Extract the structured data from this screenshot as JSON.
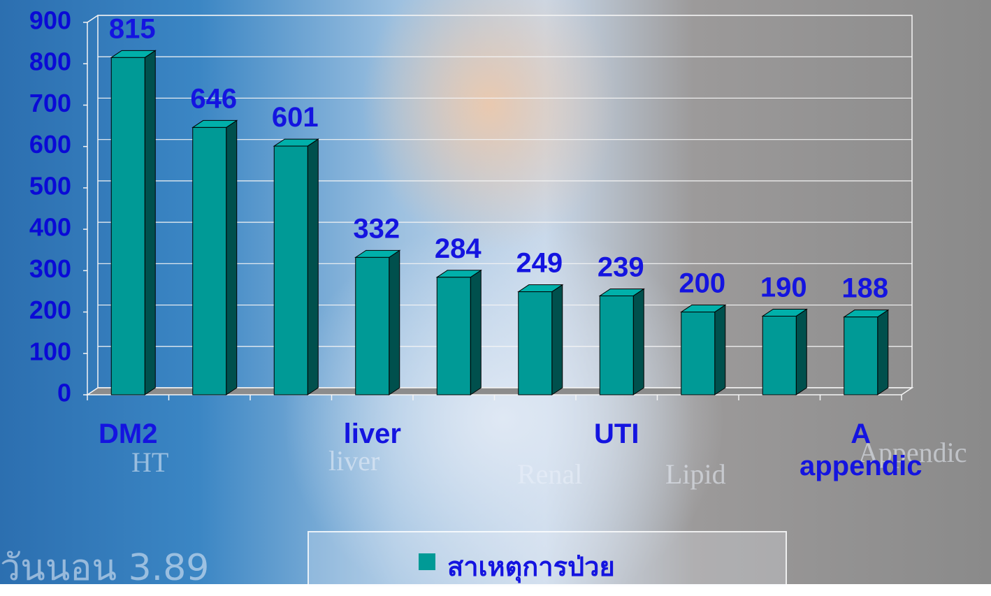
{
  "chart_data": {
    "type": "bar",
    "categories": [
      "DM2",
      null,
      null,
      "liver",
      null,
      null,
      "UTI",
      null,
      null,
      "A appendic"
    ],
    "series": [
      {
        "name": "สาเหตุการป่วย",
        "color": "#009a96",
        "values": [
          815,
          646,
          601,
          332,
          284,
          249,
          239,
          200,
          190,
          188
        ]
      }
    ],
    "ylim": [
      0,
      900
    ],
    "yticks": [
      0,
      100,
      200,
      300,
      400,
      500,
      600,
      700,
      800,
      900
    ],
    "grid": true,
    "legend": "bottom"
  },
  "background_texts": [
    "HT",
    "liver",
    "Renal",
    "Lipid",
    "Appendic",
    "วันนอน 3.89"
  ]
}
